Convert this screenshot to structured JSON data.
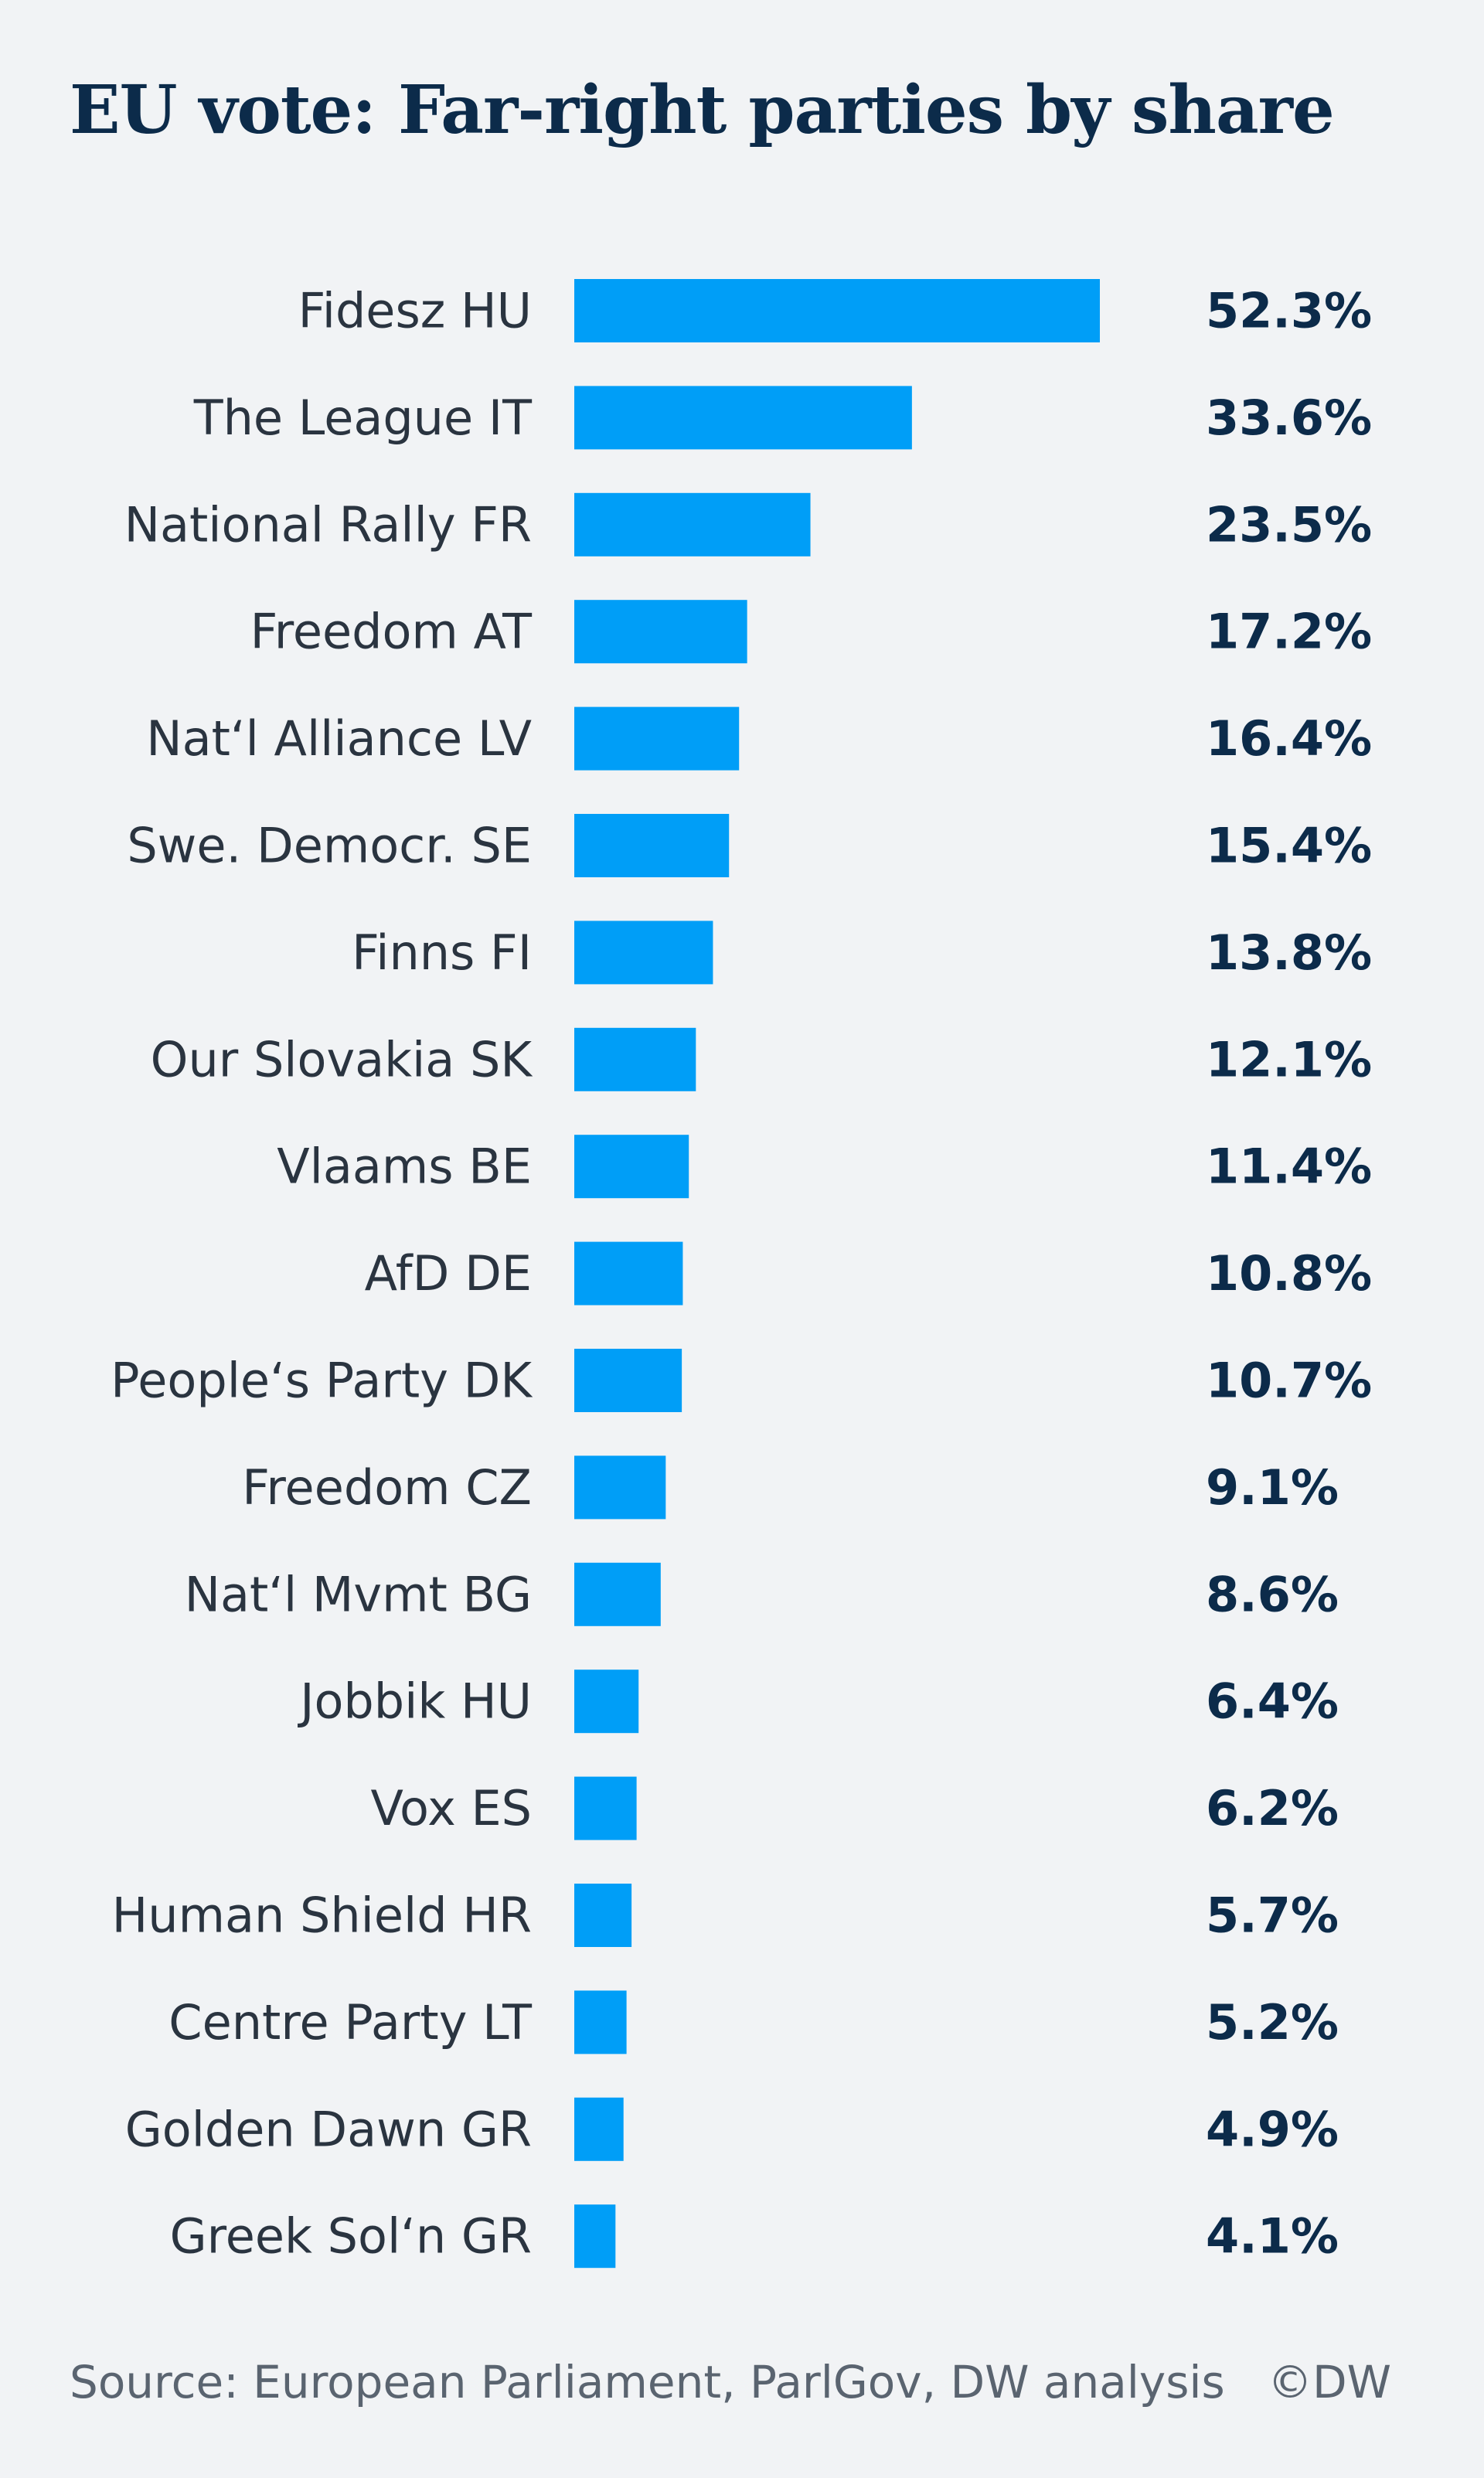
{
  "header": {
    "title": "EU vote: Far-right parties by share"
  },
  "footer": {
    "source": "Source: European Parliament, ParlGov, DW analysis",
    "credit": "©DW"
  },
  "colors": {
    "bar": "#009ef7",
    "title": "#0c2b4a",
    "label": "#2a3440",
    "background": "#f1f3f5"
  },
  "chart_data": {
    "type": "bar",
    "orientation": "horizontal",
    "title": "EU vote: Far-right parties by share",
    "categories": [
      "Fidesz HU",
      "The League IT",
      "National Rally FR",
      "Freedom AT",
      "Nat‘l Alliance LV",
      "Swe. Democr. SE",
      "Finns FI",
      "Our Slovakia SK",
      "Vlaams BE",
      "AfD DE",
      "People‘s Party DK",
      "Freedom CZ",
      "Nat‘l Mvmt BG",
      "Jobbik HU",
      "Vox ES",
      "Human Shield HR",
      "Centre Party LT",
      "Golden Dawn GR",
      "Greek Sol‘n GR"
    ],
    "values": [
      52.3,
      33.6,
      23.5,
      17.2,
      16.4,
      15.4,
      13.8,
      12.1,
      11.4,
      10.8,
      10.7,
      9.1,
      8.6,
      6.4,
      6.2,
      5.7,
      5.2,
      4.9,
      4.1
    ],
    "value_labels": [
      "52.3%",
      "33.6%",
      "23.5%",
      "17.2%",
      "16.4%",
      "15.4%",
      "13.8%",
      "12.1%",
      "11.4%",
      "10.8%",
      "10.7%",
      "9.1%",
      "8.6%",
      "6.4%",
      "6.2%",
      "5.7%",
      "5.2%",
      "4.9%",
      "4.1%"
    ],
    "xlim": [
      0,
      52.3
    ],
    "grid": false,
    "legend": "none"
  }
}
